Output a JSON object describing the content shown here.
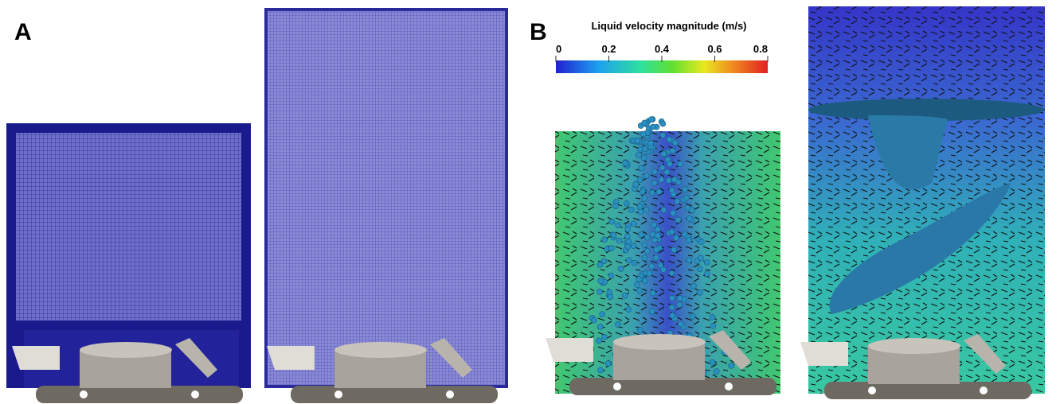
{
  "panels": [
    {
      "label": "A"
    },
    {
      "label": "B"
    }
  ],
  "colorbar": {
    "title": "Liquid velocity magnitude (m/s)",
    "lim": [
      0,
      0.8
    ],
    "ticks": [
      0,
      0.2,
      0.4,
      0.6,
      0.8
    ]
  }
}
